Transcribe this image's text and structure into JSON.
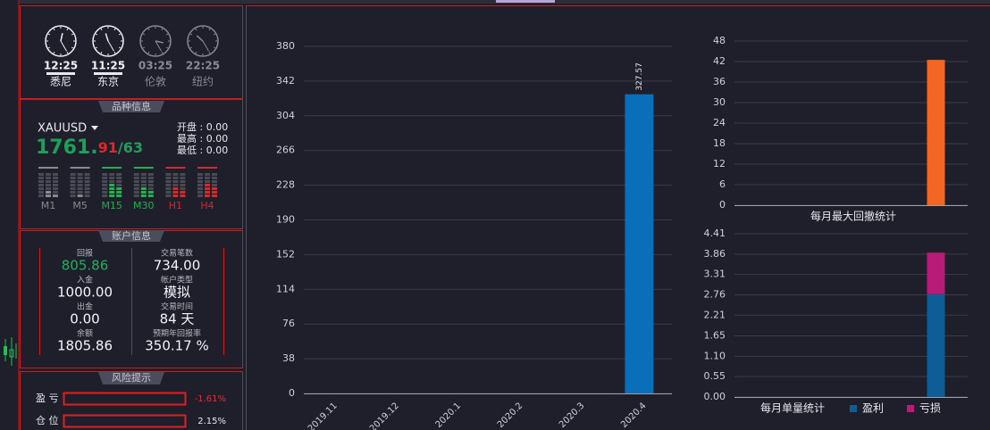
{
  "clocks": [
    {
      "time": "12:25",
      "city": "悉尼",
      "active": true
    },
    {
      "time": "11:25",
      "city": "东京",
      "active": true
    },
    {
      "time": "03:25",
      "city": "伦敦",
      "active": false
    },
    {
      "time": "22:25",
      "city": "纽约",
      "active": false
    }
  ],
  "symbol": {
    "title": "品种信息",
    "name": "XAUUSD",
    "price_main": "1761.",
    "bid_tail": "91",
    "sep": "/",
    "ask_tail": "63",
    "ohlc": [
      "开盘 : 0.00",
      "最高 : 0.00",
      "最低 : 0.00"
    ],
    "timeframes": [
      {
        "label": "M1",
        "color": "#8a8a8a"
      },
      {
        "label": "M5",
        "color": "#8a8a8a"
      },
      {
        "label": "M15",
        "color": "#22b14c"
      },
      {
        "label": "M30",
        "color": "#22b14c"
      },
      {
        "label": "H1",
        "color": "#d42a2a"
      },
      {
        "label": "H4",
        "color": "#d42a2a"
      }
    ]
  },
  "account": {
    "title": "账户信息",
    "left": [
      {
        "label": "回报",
        "value": "805.86",
        "color": "#22b060"
      },
      {
        "label": "入金",
        "value": "1000.00"
      },
      {
        "label": "出金",
        "value": "0.00"
      },
      {
        "label": "余额",
        "value": "1805.86"
      }
    ],
    "right": [
      {
        "label": "交易笔数",
        "value": "734.00"
      },
      {
        "label": "帐户类型",
        "value": "模拟"
      },
      {
        "label": "交易时间",
        "value": "84 天"
      },
      {
        "label": "预期年回报率",
        "value": "350.17 %"
      }
    ]
  },
  "risk": {
    "title": "风险提示",
    "rows": [
      {
        "label": "盈 亏",
        "value": "-1.61%",
        "color": "#e03030"
      },
      {
        "label": "仓 位",
        "value": "2.15%",
        "color": "#e8e8ee"
      }
    ]
  },
  "chart_data": [
    {
      "type": "bar",
      "categories": [
        "2019.11",
        "2019.12",
        "2020.1",
        "2020.2",
        "2020.3",
        "2020.4"
      ],
      "values": [
        0,
        0,
        0,
        0,
        0,
        327.57
      ],
      "value_labels": [
        null,
        null,
        null,
        null,
        null,
        "327.57"
      ],
      "color": "#0a6fba",
      "ylim": [
        0,
        380
      ],
      "yticks": [
        0,
        38,
        76,
        114,
        152,
        190,
        228,
        266,
        304,
        342,
        380
      ],
      "grid": true
    },
    {
      "type": "bar",
      "xlabel": "每月最大回撤统计",
      "categories": [
        null,
        null,
        null,
        null,
        null,
        null
      ],
      "values": [
        0,
        0,
        0,
        0,
        0,
        42.5
      ],
      "color": "#f26522",
      "ylim": [
        0,
        48
      ],
      "yticks": [
        0,
        6,
        12,
        18,
        24,
        30,
        36,
        42,
        48
      ],
      "grid": true
    },
    {
      "type": "stacked_bar",
      "xlabel": "每月单量统计",
      "categories": [
        null,
        null,
        null,
        null,
        null,
        null
      ],
      "series": [
        {
          "name": "盈利",
          "color": "#0e5d96",
          "values": [
            0,
            0,
            0,
            0,
            0,
            2.78
          ]
        },
        {
          "name": "亏损",
          "color": "#b81c78",
          "values": [
            0,
            0,
            0,
            0,
            0,
            1.12
          ]
        }
      ],
      "ylim": [
        0,
        4.41
      ],
      "yticks": [
        {
          "value": 0,
          "label": "0.00"
        },
        0.55,
        {
          "value": 1.1,
          "label": "1.10"
        },
        1.65,
        2.21,
        2.76,
        3.31,
        3.86,
        4.41
      ],
      "grid": true
    }
  ]
}
